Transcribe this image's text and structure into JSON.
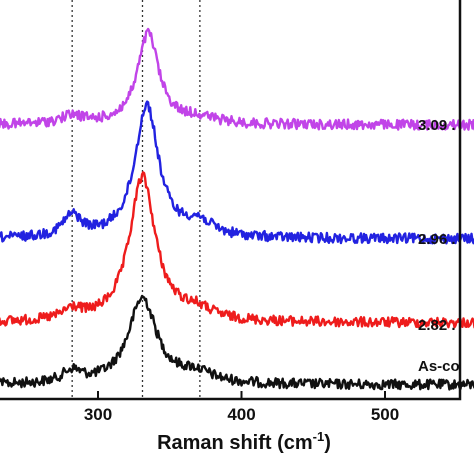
{
  "chart_data": {
    "type": "line",
    "xlabel_main": "Raman shift (cm",
    "xlabel_sup": "-1",
    "xlabel_end": ")",
    "xlim": [
      200,
      600
    ],
    "xticks": [
      300,
      400,
      500
    ],
    "reference_lines": [
      282,
      331,
      371
    ],
    "grid": false,
    "series": [
      {
        "label": "As-co",
        "color": "#111111",
        "baseline": 385,
        "peaks": [
          {
            "center": 331,
            "height": 86,
            "width": 12
          },
          {
            "center": 282,
            "height": 12,
            "width": 8
          },
          {
            "center": 368,
            "height": 10,
            "width": 14
          }
        ]
      },
      {
        "label": "2.82 .",
        "color": "#ee1c1c",
        "baseline": 323,
        "peaks": [
          {
            "center": 331,
            "height": 145,
            "width": 11
          },
          {
            "center": 282,
            "height": 10,
            "width": 8
          },
          {
            "center": 368,
            "height": 10,
            "width": 14
          }
        ]
      },
      {
        "label": "2.96 .",
        "color": "#2222e0",
        "baseline": 239,
        "peaks": [
          {
            "center": 334,
            "height": 133,
            "width": 10
          },
          {
            "center": 282,
            "height": 21,
            "width": 8
          },
          {
            "center": 370,
            "height": 14,
            "width": 12
          }
        ]
      },
      {
        "label": "3.09 .",
        "color": "#c144e8",
        "baseline": 125,
        "peaks": [
          {
            "center": 335,
            "height": 91,
            "width": 9
          },
          {
            "center": 282,
            "height": 8,
            "width": 10
          },
          {
            "center": 370,
            "height": 6,
            "width": 14
          }
        ]
      }
    ]
  }
}
